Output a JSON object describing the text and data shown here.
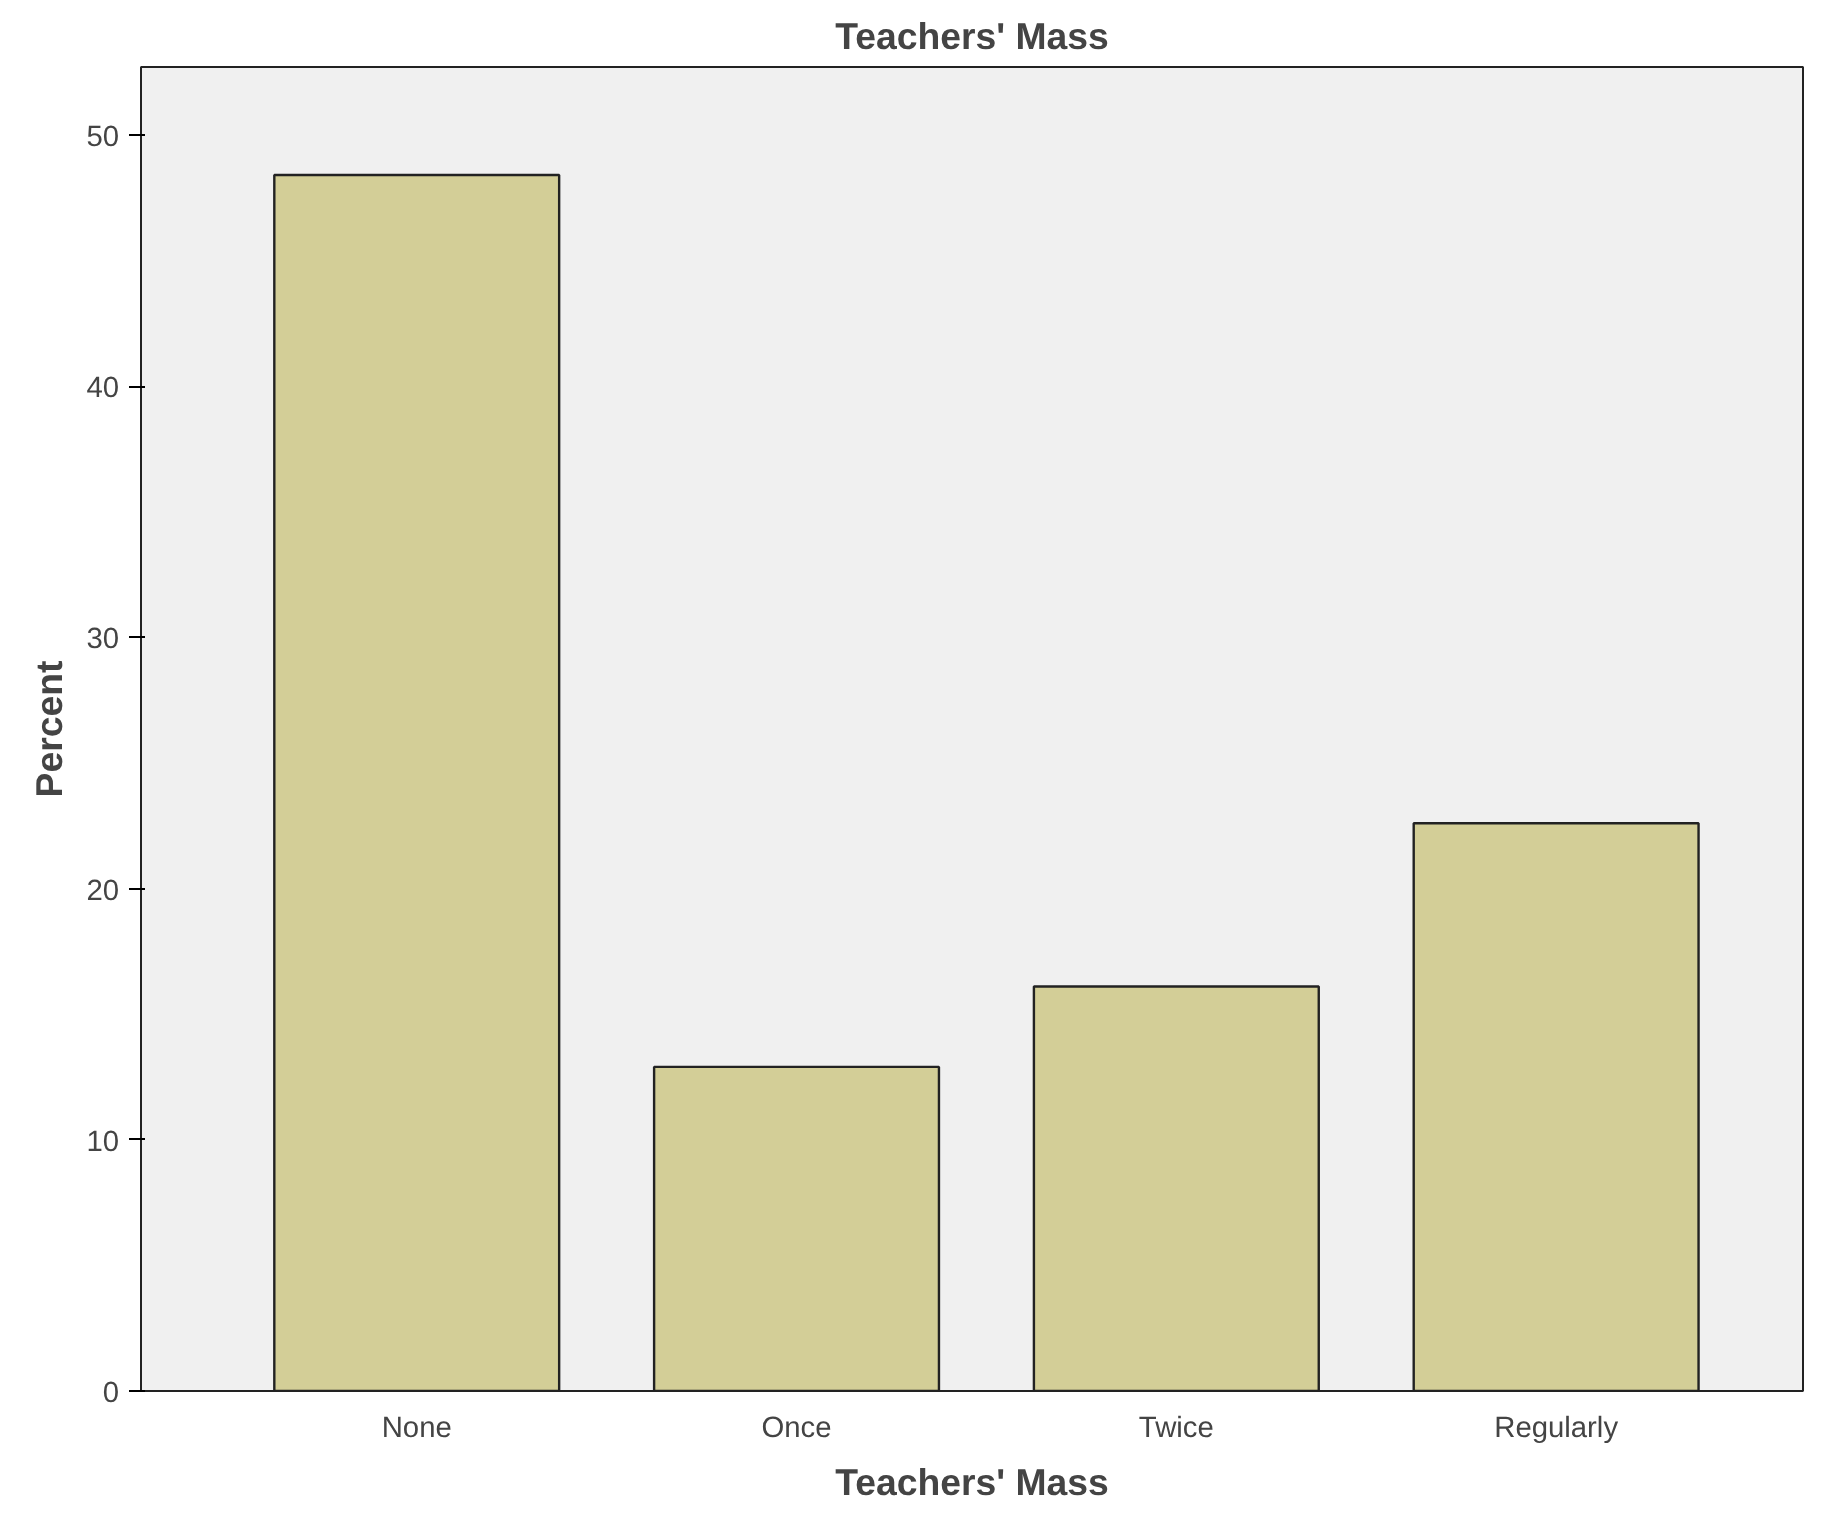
{
  "chart_data": {
    "type": "bar",
    "title": "Teachers' Mass",
    "xlabel": "Teachers' Mass",
    "ylabel": "Percent",
    "categories": [
      "None",
      "Once",
      "Twice",
      "Regularly"
    ],
    "values": [
      48.4,
      12.9,
      16.1,
      22.6
    ],
    "color": "#d3ce97",
    "ylim": [
      0,
      52.7
    ],
    "yticks": [
      0,
      10,
      20,
      30,
      40,
      50
    ],
    "grid": false
  }
}
